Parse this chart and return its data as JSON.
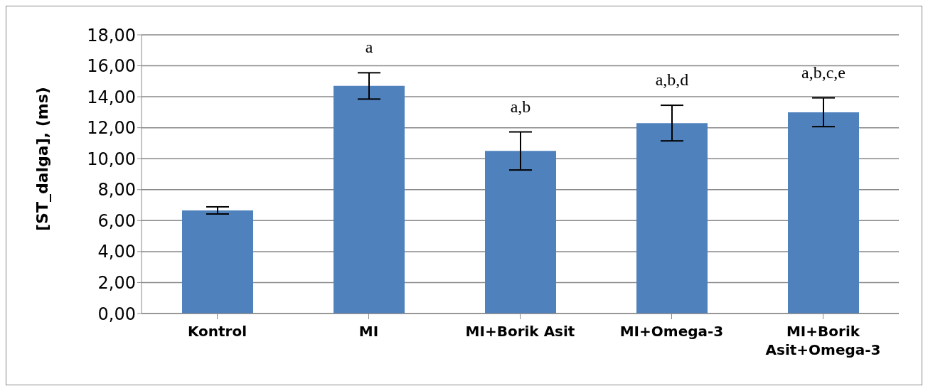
{
  "chart_data": {
    "type": "bar",
    "ylabel": "[ST_dalga], (ms)",
    "categories": [
      "Kontrol",
      "MI",
      "MI+Borik Asit",
      "MI+Omega-3",
      "MI+Borik Asit+Omega-3"
    ],
    "values": [
      6.66,
      14.7,
      10.5,
      12.3,
      13.0
    ],
    "errors": [
      0.23,
      0.85,
      1.23,
      1.15,
      0.93
    ],
    "color": "#4f81bd",
    "ylim": [
      0,
      18
    ],
    "yticks": [
      {
        "value": 0,
        "label": "0,00"
      },
      {
        "value": 2,
        "label": "2,00"
      },
      {
        "value": 4,
        "label": "4,00"
      },
      {
        "value": 6,
        "label": "6,00"
      },
      {
        "value": 8,
        "label": "8,00"
      },
      {
        "value": 10,
        "label": "10,00"
      },
      {
        "value": 12,
        "label": "12,00"
      },
      {
        "value": 14,
        "label": "14,00"
      },
      {
        "value": 16,
        "label": "16,00"
      },
      {
        "value": 18,
        "label": "18,00"
      }
    ],
    "grid": "y",
    "value_labels": [
      null,
      "a",
      "a,b",
      "a,b,d",
      "a,b,c,e"
    ]
  }
}
